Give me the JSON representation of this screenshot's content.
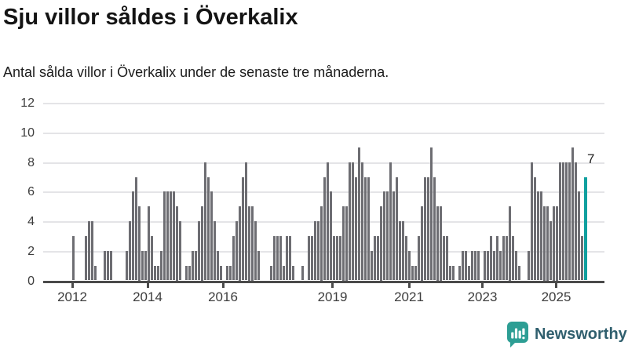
{
  "header": {
    "title": "Sju villor såldes i Överkalix",
    "subtitle": "Antal sålda villor i Överkalix under de senaste tre månaderna."
  },
  "chart_data": {
    "type": "bar",
    "title": "Sju villor såldes i Överkalix",
    "subtitle": "Antal sålda villor i Överkalix under de senaste tre månaderna.",
    "grid": true,
    "legend": false,
    "ylim": [
      0,
      12
    ],
    "yticks": [
      0,
      2,
      4,
      6,
      8,
      10,
      12
    ],
    "xticks": [
      "2012",
      "2014",
      "2016",
      "2019",
      "2021",
      "2023",
      "2025"
    ],
    "x_start": "2012-01",
    "frequency": "monthly",
    "values": [
      3,
      0,
      0,
      0,
      3,
      4,
      4,
      1,
      0,
      0,
      2,
      2,
      2,
      0,
      0,
      0,
      0,
      2,
      4,
      6,
      7,
      5,
      2,
      2,
      5,
      3,
      1,
      1,
      2,
      6,
      6,
      6,
      6,
      5,
      4,
      0,
      1,
      1,
      2,
      2,
      4,
      5,
      8,
      7,
      6,
      4,
      2,
      1,
      0,
      1,
      1,
      3,
      4,
      5,
      7,
      8,
      5,
      5,
      4,
      2,
      0,
      0,
      0,
      1,
      3,
      3,
      3,
      1,
      3,
      3,
      1,
      0,
      0,
      1,
      0,
      3,
      3,
      4,
      4,
      5,
      7,
      8,
      6,
      3,
      3,
      3,
      5,
      5,
      8,
      8,
      7,
      9,
      8,
      7,
      7,
      2,
      3,
      3,
      5,
      6,
      6,
      8,
      6,
      7,
      4,
      4,
      3,
      2,
      1,
      1,
      3,
      5,
      7,
      7,
      9,
      7,
      5,
      5,
      3,
      3,
      1,
      1,
      0,
      1,
      2,
      2,
      1,
      2,
      2,
      2,
      0,
      2,
      2,
      3,
      2,
      3,
      2,
      3,
      3,
      5,
      3,
      2,
      1,
      0,
      0,
      2,
      8,
      7,
      6,
      6,
      5,
      5,
      4,
      5,
      5,
      8,
      8,
      8,
      8,
      9,
      8,
      6,
      3,
      7
    ],
    "highlight_last_value": 7,
    "highlight_label": "7",
    "colors": {
      "bar": "#6d6d72",
      "highlight_bar": "#11a09f",
      "gridline": "#e4e4e7",
      "axis": "#4a4a4a",
      "tick_text": "#3d3d3d"
    }
  },
  "footer": {
    "brand": "Newsworthy",
    "logo_icon": "newsworthy-speech-bubble-bar-chart-icon",
    "colors": {
      "logo": "#2d9e94",
      "brand_text": "#305f6e"
    }
  }
}
